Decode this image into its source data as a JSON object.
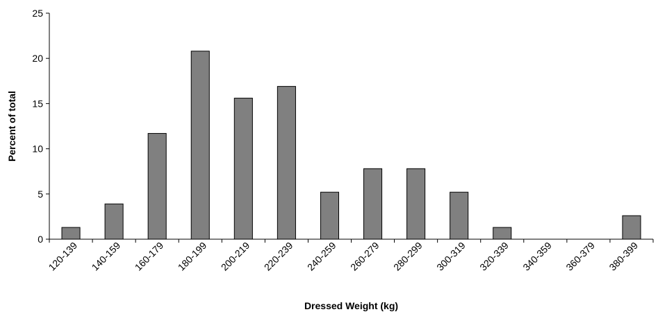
{
  "chart_data": {
    "type": "bar",
    "title": "",
    "xlabel": "Dressed Weight (kg)",
    "ylabel": "Percent of total",
    "categories": [
      "120-139",
      "140-159",
      "160-179",
      "180-199",
      "200-219",
      "220-239",
      "240-259",
      "260-279",
      "280-299",
      "300-319",
      "320-339",
      "340-359",
      "360-379",
      "380-399"
    ],
    "series": [
      {
        "values": [
          1.3,
          3.9,
          11.7,
          20.8,
          15.6,
          16.9,
          5.2,
          7.8,
          7.8,
          5.2,
          1.3,
          0,
          0,
          2.6
        ]
      }
    ],
    "ylim": [
      0,
      25
    ],
    "yticks": [
      0,
      5,
      10,
      15,
      20,
      25
    ],
    "grid": false,
    "legend": "none",
    "bar_color": "#808080",
    "bar_edge_color": "#000000"
  }
}
